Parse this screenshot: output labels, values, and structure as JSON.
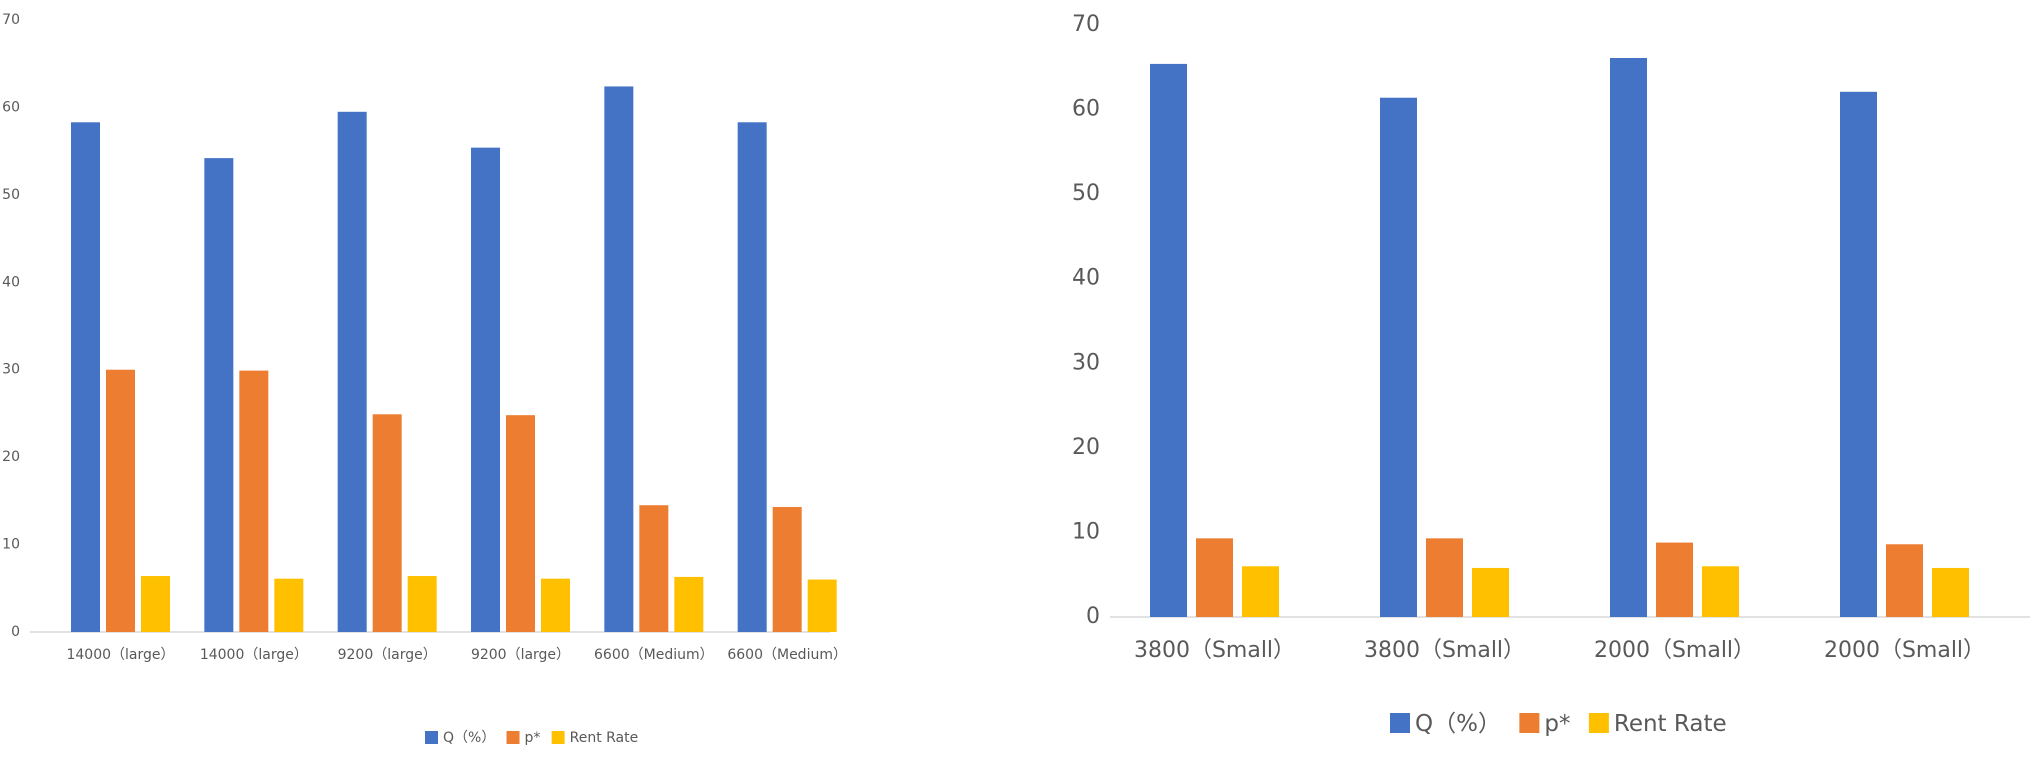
{
  "colors": {
    "q": "#4472C4",
    "p": "#ED7D31",
    "rent": "#FFC000",
    "axis": "#D9D9D9",
    "text": "#595959"
  },
  "legend": {
    "entries": [
      {
        "key": "q",
        "label": "Q（%）"
      },
      {
        "key": "p",
        "label": "p*"
      },
      {
        "key": "rent",
        "label": "Rent Rate"
      }
    ]
  },
  "chart_data": [
    {
      "type": "bar",
      "categories": [
        "14000（large）",
        "14000（large）",
        "9200（large）",
        "9200（large）",
        "6600（Medium）",
        "6600（Medium）"
      ],
      "y_ticks": [
        "0",
        "10",
        "20",
        "30",
        "40",
        "50",
        "60",
        "70"
      ],
      "ylim": [
        0,
        70
      ],
      "grid": false,
      "legend_position": "bottom",
      "series": [
        {
          "key": "q",
          "name": "Q（%）",
          "values": [
            58.3,
            54.2,
            59.5,
            55.4,
            62.4,
            58.3
          ]
        },
        {
          "key": "p",
          "name": "p*",
          "values": [
            30.0,
            29.9,
            24.9,
            24.8,
            14.5,
            14.3
          ]
        },
        {
          "key": "rent",
          "name": "Rent Rate",
          "values": [
            6.4,
            6.1,
            6.4,
            6.1,
            6.3,
            6.0
          ]
        }
      ]
    },
    {
      "type": "bar",
      "categories": [
        "3800（Small）",
        "3800（Small）",
        "2000（Small）",
        "2000（Small）"
      ],
      "y_ticks": [
        "0",
        "10",
        "20",
        "30",
        "40",
        "50",
        "60",
        "70"
      ],
      "ylim": [
        0,
        70
      ],
      "grid": false,
      "legend_position": "bottom",
      "series": [
        {
          "key": "q",
          "name": "Q（%）",
          "values": [
            65.4,
            61.4,
            66.1,
            62.1
          ]
        },
        {
          "key": "p",
          "name": "p*",
          "values": [
            9.3,
            9.3,
            8.8,
            8.6
          ]
        },
        {
          "key": "rent",
          "name": "Rent Rate",
          "values": [
            6.0,
            5.8,
            6.0,
            5.8
          ]
        }
      ]
    }
  ]
}
